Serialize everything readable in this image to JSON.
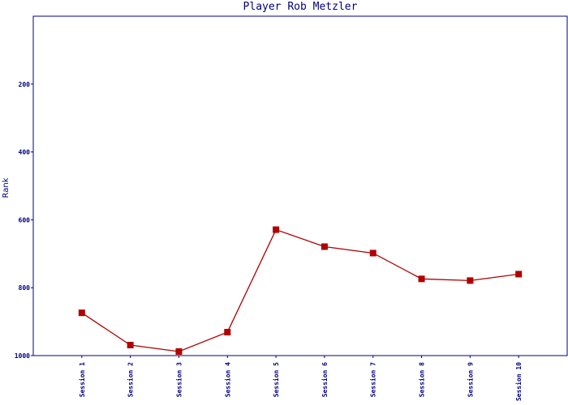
{
  "chart_data": {
    "type": "line",
    "title": "Player Rob Metzler",
    "y_label": "Rank",
    "categories": [
      "Session 1",
      "Session 2",
      "Session 3",
      "Session 4",
      "Session 5",
      "Session 6",
      "Session 7",
      "Session 8",
      "Session 9",
      "Session 10"
    ],
    "series": [
      {
        "name": "Rank",
        "color": "#b00000",
        "values": [
          874,
          969,
          988,
          931,
          629,
          679,
          698,
          774,
          779,
          760
        ]
      }
    ],
    "ylim": [
      0,
      1000
    ],
    "y_inverted": true,
    "yticks": [
      200,
      400,
      600,
      800,
      1000
    ]
  }
}
